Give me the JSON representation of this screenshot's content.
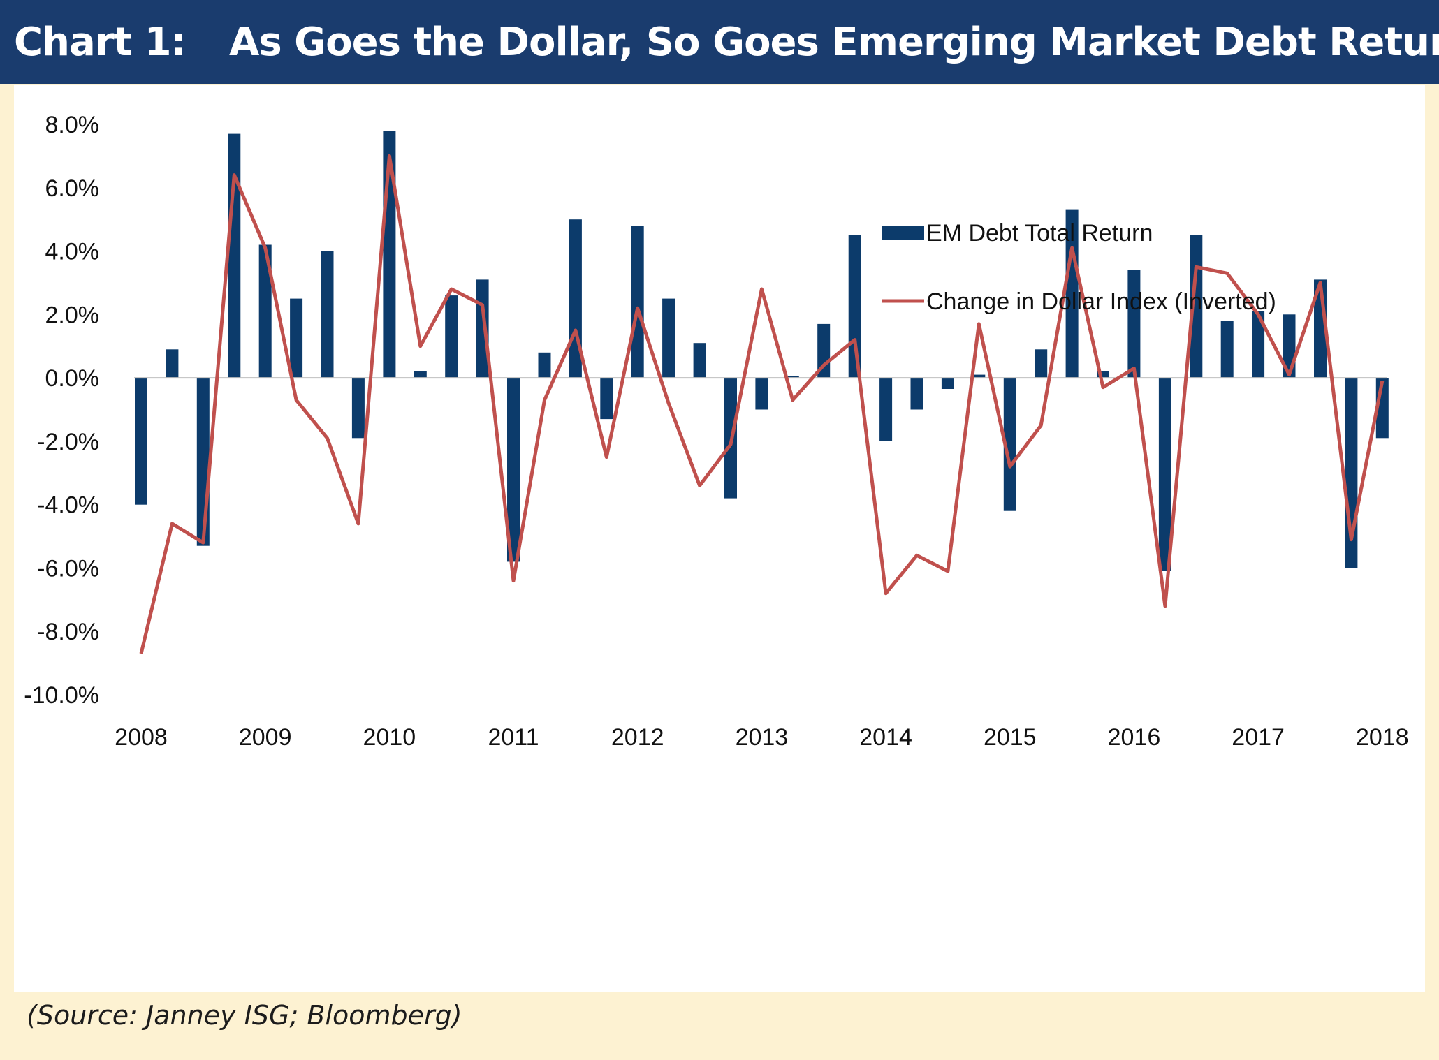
{
  "title": {
    "label": "Chart 1:",
    "text": "As Goes the Dollar, So Goes Emerging Market Debt Returns"
  },
  "source": "(Source: Janney ISG; Bloomberg)",
  "colors": {
    "background": "#fdf2d2",
    "plot_background": "#ffffff",
    "title_bar": "#1a3c6e",
    "bar": "#0c3b6b",
    "line": "#c0504d",
    "axis": "#bfbfbf"
  },
  "chart_data": {
    "type": "bar",
    "title": "As Goes the Dollar, So Goes Emerging Market Debt Returns",
    "xlabel": "",
    "ylabel": "",
    "ylim": [
      -10,
      8
    ],
    "y_ticks": [
      8,
      6,
      4,
      2,
      0,
      -2,
      -4,
      -6,
      -8,
      -10
    ],
    "y_tick_labels": [
      "8.0%",
      "6.0%",
      "4.0%",
      "2.0%",
      "0.0%",
      "-2.0%",
      "-4.0%",
      "-6.0%",
      "-8.0%",
      "-10.0%"
    ],
    "x_tick_labels": [
      "2008",
      "2009",
      "2010",
      "2011",
      "2012",
      "2013",
      "2014",
      "2015",
      "2016",
      "2017",
      "2018"
    ],
    "quarters_per_label": 4,
    "legend_position": "top-right",
    "series": [
      {
        "name": "EM Debt Total Return",
        "kind": "bar",
        "values": [
          -4.0,
          0.9,
          -5.3,
          7.7,
          4.2,
          2.5,
          4.0,
          -1.9,
          7.8,
          0.2,
          2.6,
          3.1,
          -5.8,
          0.8,
          5.0,
          -1.3,
          4.8,
          2.5,
          1.1,
          -3.8,
          -1.0,
          0.05,
          1.7,
          4.5,
          -2.0,
          -1.0,
          -0.35,
          0.1,
          -4.2,
          0.9,
          5.3,
          0.2,
          3.4,
          -6.1,
          4.5,
          1.8,
          2.1,
          2.0,
          3.1,
          -6.0,
          -1.9
        ]
      },
      {
        "name": "Change in Dollar Index (Inverted)",
        "kind": "line",
        "values": [
          -8.7,
          -4.6,
          -5.2,
          6.4,
          4.1,
          -0.7,
          -1.9,
          -4.6,
          7.0,
          1.0,
          2.8,
          2.3,
          -6.4,
          -0.7,
          1.5,
          -2.5,
          2.2,
          -0.8,
          -3.4,
          -2.1,
          2.8,
          -0.7,
          0.4,
          1.2,
          -6.8,
          -5.6,
          -6.1,
          1.7,
          -2.8,
          -1.5,
          4.1,
          -0.3,
          0.3,
          -7.2,
          3.5,
          3.3,
          2.0,
          0.1,
          3.0,
          -5.1,
          -0.1
        ]
      }
    ]
  }
}
